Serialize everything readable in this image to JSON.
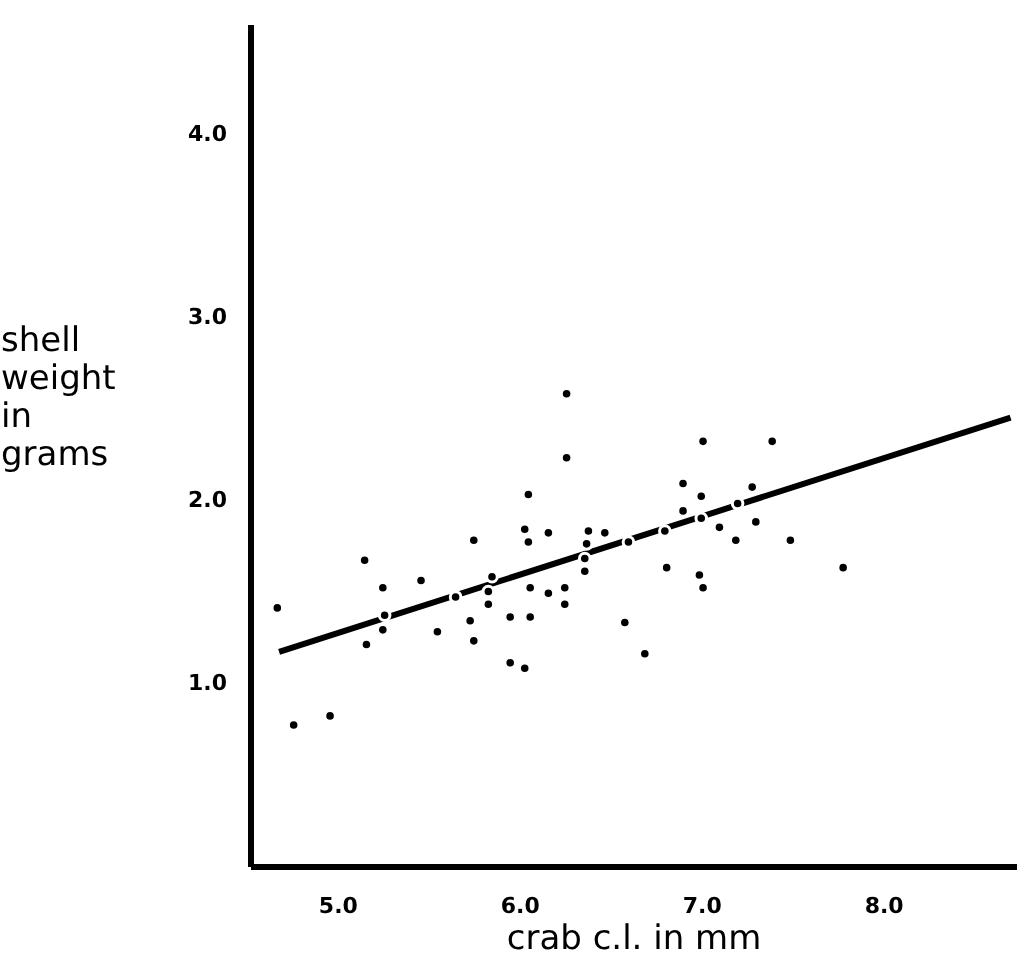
{
  "chart_data": {
    "type": "scatter",
    "xlabel": "crab c.l. in mm",
    "ylabel": "shell weight in grams",
    "xlim": [
      4.52,
      8.73
    ],
    "ylim": [
      0,
      4.6
    ],
    "xticks": [
      {
        "value": 5,
        "label": "5.0"
      },
      {
        "value": 6,
        "label": "6.0"
      },
      {
        "value": 7,
        "label": "7.0"
      },
      {
        "value": 8,
        "label": "8.0"
      }
    ],
    "yticks": [
      {
        "value": 1,
        "label": "1.0"
      },
      {
        "value": 2,
        "label": "2.0"
      },
      {
        "value": 3,
        "label": "3.0"
      },
      {
        "value": 4,
        "label": "4.0"
      }
    ],
    "marker": "circle",
    "series": [
      {
        "color": "#000000",
        "x": [
          4.67,
          4.76,
          4.96,
          5.15,
          5.25,
          5.26,
          5.25,
          5.16,
          5.46,
          5.55,
          5.65,
          5.73,
          5.75,
          5.75,
          5.83,
          5.85,
          5.83,
          5.95,
          5.95,
          6.05,
          6.03,
          6.05,
          6.16,
          6.06,
          6.06,
          6.03,
          6.16,
          6.26,
          6.26,
          6.25,
          6.25,
          6.38,
          6.37,
          6.36,
          6.36,
          6.47,
          6.6,
          6.58,
          6.69,
          6.8,
          6.81,
          6.9,
          6.9,
          6.99,
          7.01,
          7.01,
          7.0,
          7.0,
          7.1,
          7.19,
          7.2,
          7.28,
          7.3,
          7.39,
          7.49,
          7.78
        ],
        "values": [
          1.41,
          0.77,
          0.82,
          1.67,
          1.52,
          1.37,
          1.29,
          1.21,
          1.56,
          1.28,
          1.47,
          1.34,
          1.23,
          1.78,
          1.5,
          1.58,
          1.43,
          1.36,
          1.11,
          2.03,
          1.84,
          1.77,
          1.82,
          1.52,
          1.36,
          1.08,
          1.49,
          2.58,
          2.23,
          1.52,
          1.43,
          1.83,
          1.76,
          1.68,
          1.61,
          1.82,
          1.77,
          1.33,
          1.16,
          1.83,
          1.63,
          2.09,
          1.94,
          1.59,
          1.52,
          2.32,
          2.02,
          1.9,
          1.85,
          1.78,
          1.98,
          2.07,
          1.88,
          2.32,
          1.78,
          1.63
        ]
      },
      {
        "type": "line",
        "color": "#000000",
        "line_style": "solid",
        "marker": "none",
        "x": [
          4.68,
          8.7
        ],
        "values": [
          1.17,
          2.45
        ]
      }
    ]
  }
}
